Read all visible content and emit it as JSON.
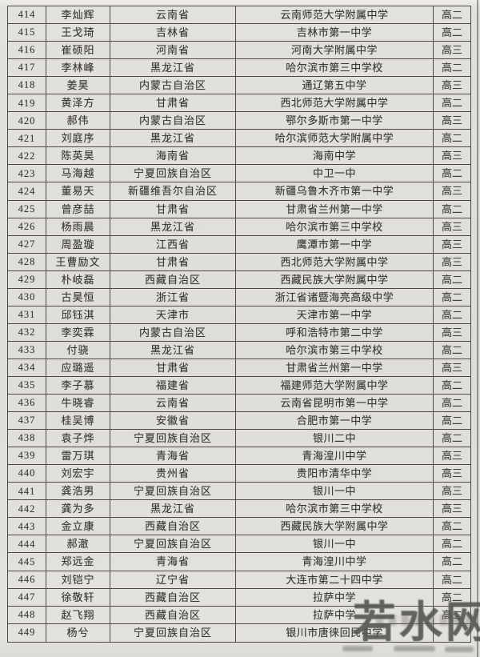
{
  "page": {
    "background": "#dfddd8",
    "border_color": "#49473f",
    "text_color": "#373530"
  },
  "watermark": {
    "text": "若水网",
    "color": "#4a4a47"
  },
  "table": {
    "column_keys": [
      "number",
      "name",
      "province",
      "school",
      "grade"
    ],
    "rows": [
      {
        "number": "414",
        "name": "李灿辉",
        "province": "云南省",
        "school": "云南师范大学附属中学",
        "grade": "高二"
      },
      {
        "number": "415",
        "name": "王戈琦",
        "province": "吉林省",
        "school": "吉林市第一中学",
        "grade": "高二"
      },
      {
        "number": "416",
        "name": "崔硕阳",
        "province": "河南省",
        "school": "河南大学附属中学",
        "grade": "高三"
      },
      {
        "number": "417",
        "name": "李林峰",
        "province": "黑龙江省",
        "school": "哈尔滨市第三中学校",
        "grade": "高二"
      },
      {
        "number": "418",
        "name": "姜昊",
        "province": "内蒙古自治区",
        "school": "通辽第五中学",
        "grade": "高三"
      },
      {
        "number": "419",
        "name": "黄泽方",
        "province": "甘肃省",
        "school": "西北师范大学附属中学",
        "grade": "高二"
      },
      {
        "number": "420",
        "name": "郝伟",
        "province": "内蒙古自治区",
        "school": "鄂尔多斯市第一中学",
        "grade": "高三"
      },
      {
        "number": "421",
        "name": "刘庭序",
        "province": "黑龙江省",
        "school": "哈尔滨师范大学附属中学",
        "grade": "高二"
      },
      {
        "number": "422",
        "name": "陈英昊",
        "province": "海南省",
        "school": "海南中学",
        "grade": "高三"
      },
      {
        "number": "423",
        "name": "马海越",
        "province": "宁夏回族自治区",
        "school": "中卫一中",
        "grade": "高二"
      },
      {
        "number": "424",
        "name": "董易天",
        "province": "新疆维吾尔自治区",
        "school": "新疆乌鲁木齐市第一中学",
        "grade": "高三"
      },
      {
        "number": "425",
        "name": "曾彦喆",
        "province": "甘肃省",
        "school": "甘肃省兰州第一中学",
        "grade": "高二"
      },
      {
        "number": "426",
        "name": "杨雨晨",
        "province": "黑龙江省",
        "school": "哈尔滨市第三中学校",
        "grade": "高三"
      },
      {
        "number": "427",
        "name": "周盈璇",
        "province": "江西省",
        "school": "鹰潭市第一中学",
        "grade": "高三"
      },
      {
        "number": "428",
        "name": "王曹励文",
        "province": "甘肃省",
        "school": "西北师范大学附属中学",
        "grade": "高三"
      },
      {
        "number": "429",
        "name": "朴岐磊",
        "province": "西藏自治区",
        "school": "西藏民族大学附属中学",
        "grade": "高二"
      },
      {
        "number": "430",
        "name": "古昊恒",
        "province": "浙江省",
        "school": "浙江省诸暨海亮高级中学",
        "grade": "高二"
      },
      {
        "number": "431",
        "name": "邱钰淇",
        "province": "天津市",
        "school": "天津市第一中学",
        "grade": "高二"
      },
      {
        "number": "432",
        "name": "李奕霖",
        "province": "内蒙古自治区",
        "school": "呼和浩特市第二中学",
        "grade": "高三"
      },
      {
        "number": "433",
        "name": "付骁",
        "province": "黑龙江省",
        "school": "哈尔滨市第三中学校",
        "grade": "高二"
      },
      {
        "number": "434",
        "name": "应璐遥",
        "province": "甘肃省",
        "school": "甘肃省兰州第一中学",
        "grade": "高三"
      },
      {
        "number": "435",
        "name": "李子慕",
        "province": "福建省",
        "school": "福建师范大学附属中学",
        "grade": "高二"
      },
      {
        "number": "436",
        "name": "牛晓睿",
        "province": "云南省",
        "school": "云南省昆明市第一中学",
        "grade": "高二"
      },
      {
        "number": "437",
        "name": "桂吴博",
        "province": "安徽省",
        "school": "合肥市第一中学",
        "grade": "高二"
      },
      {
        "number": "438",
        "name": "袁子烨",
        "province": "宁夏回族自治区",
        "school": "银川二中",
        "grade": "高二"
      },
      {
        "number": "439",
        "name": "雷万琪",
        "province": "青海省",
        "school": "青海湟川中学",
        "grade": "高三"
      },
      {
        "number": "440",
        "name": "刘宏宇",
        "province": "贵州省",
        "school": "贵阳市清华中学",
        "grade": "高三"
      },
      {
        "number": "441",
        "name": "龚浩男",
        "province": "宁夏回族自治区",
        "school": "银川一中",
        "grade": "高三"
      },
      {
        "number": "442",
        "name": "龚为多",
        "province": "黑龙江省",
        "school": "哈尔滨市第三中学校",
        "grade": "高三"
      },
      {
        "number": "443",
        "name": "金立康",
        "province": "西藏自治区",
        "school": "西藏民族大学附属中学",
        "grade": "高二"
      },
      {
        "number": "444",
        "name": "郝澈",
        "province": "宁夏回族自治区",
        "school": "银川一中",
        "grade": "高二"
      },
      {
        "number": "445",
        "name": "郑远金",
        "province": "青海省",
        "school": "青海湟川中学",
        "grade": "高二"
      },
      {
        "number": "446",
        "name": "刘铠宁",
        "province": "辽宁省",
        "school": "大连市第二十四中学",
        "grade": "高二"
      },
      {
        "number": "447",
        "name": "徐敬轩",
        "province": "西藏自治区",
        "school": "拉萨中学",
        "grade": "高二"
      },
      {
        "number": "448",
        "name": "赵飞翔",
        "province": "西藏自治区",
        "school": "拉萨中学",
        "grade": "高二"
      },
      {
        "number": "449",
        "name": "杨兮",
        "province": "宁夏回族自治区",
        "school": "银川市唐徕回民中学",
        "grade": ""
      }
    ]
  }
}
